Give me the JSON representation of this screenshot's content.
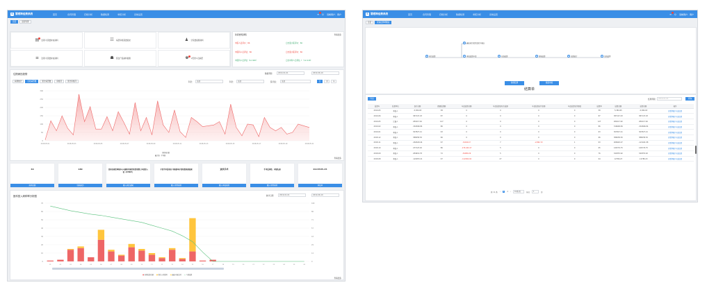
{
  "app": {
    "title": "慧眼神经费系统",
    "user": "当前用户：用户",
    "badge": "2"
  },
  "nav": [
    "首页",
    "合同管理",
    "归档分析",
    "数据检测",
    "考核分析",
    "系统设置"
  ],
  "left": {
    "tabs": [
      "首页",
      "运营管理"
    ],
    "quick": [
      "近期 可需要补充资料",
      "病历审核需要提交",
      "全院要提醒资料",
      "近期 可需要补充资料",
      "医患产品资料提醒",
      "2天里人员病历"
    ],
    "notice": {
      "title": "新闻告知通知",
      "more": "查看更多",
      "items": [
        [
          "中医人员评价：86",
          "日志量小医评价：86"
        ],
        [
          "中医科人员评估：86",
          "日志量小医评价：86"
        ],
        [
          "中医科人员评估（12.368）",
          "日志中科人员评估 ↑（12.218）"
        ]
      ]
    },
    "trend": {
      "title": "住院病历趋势",
      "date_label": "数据周期",
      "date_from": "2019-01-01",
      "date_to": "2019-06-19",
      "tabs": [
        "病例统计",
        "归档病历数",
        "累计病历数",
        "审核问",
        "累计审核问"
      ],
      "f1": "科室：",
      "f1v": "全部",
      "f2": "科室：",
      "f2v": "全部",
      "f3": "医疗组：",
      "f3v": "全部",
      "btns": [
        "日",
        "月",
        "年"
      ],
      "legend": [
        "全院病历数",
        "最大值",
        "平均值"
      ],
      "more": "查看更多"
    },
    "stats": [
      {
        "v": "40",
        "b": "病例总数"
      },
      {
        "v": "180",
        "b": "归档病历"
      },
      {
        "v": "目前在病历审核中心(通知)的病历的患者第三申请是入者（STENT）",
        "b": "重入病历通知"
      },
      {
        "v": "子宫手术后病况 可能影响子宫和患病部结果",
        "b": "重入可用病例"
      },
      {
        "v": "波状手术",
        "b": "重入审核病例"
      },
      {
        "v": "手术后风险、冲管失调",
        "b": "重入可用病例"
      },
      {
        "v": "0115535.25",
        "b": "审核中"
      }
    ],
    "chart2": {
      "title": "医科室入病种率分析图",
      "label": "统计日期",
      "from": "2019-01-01",
      "to": "2019-06-19",
      "legend": [
        "病例结算总额",
        "整合入院费用",
        "最高可报比例",
        "人数结算"
      ],
      "more": "查看更多"
    }
  },
  "right": {
    "tabs": [
      "首页",
      "医保结算明细表"
    ],
    "flow": [
      "病历结算",
      "审核病历类型及签字确认",
      "审批结算申请",
      "在线结算",
      "智能结算",
      "审核结算",
      "总数统计",
      "归档结算"
    ],
    "btn1": "新增结算",
    "btn2": "批量审核",
    "heading": "结算单",
    "export": "导出",
    "period_label": "结算周期：",
    "period": "2019-01-01",
    "query": "查询",
    "cols": [
      "结算年",
      "结算单位",
      "医疗总额",
      "数量结算额",
      "年度结算金额",
      "年度结算实际完成额",
      "年度结算应付金额",
      "年度结算实付额度",
      "结算率",
      "结算金额",
      "结算金额",
      "操作"
    ],
    "rows": [
      [
        "2019-05",
        "本医人",
        "-5,384.65",
        "58",
        "0",
        "0",
        "0",
        "0",
        "58",
        "5,384.65",
        "-5,384.65"
      ],
      [
        "2019-06",
        "本医人",
        "387147.03",
        "87",
        "0",
        "0",
        "0",
        "0",
        "87",
        "387147.03",
        "387147.03"
      ],
      [
        "2019-05",
        "汇集人",
        "281617.62",
        "127",
        "0",
        "0",
        "0",
        "0",
        "127",
        "281617.62",
        "281617.62"
      ],
      [
        "2019-02",
        "本医人",
        "-316696.84",
        "86",
        "0",
        "0",
        "0",
        "0",
        "86",
        "316696.84",
        "-316696.84"
      ],
      [
        "2019-01",
        "本医人",
        "307827.21",
        "63",
        "0",
        "0",
        "0",
        "0",
        "63",
        "307827.21",
        "307827.21"
      ],
      [
        "2018-12",
        "本医人",
        "386058.30",
        "66",
        "0",
        "0",
        "0",
        "0",
        "66",
        "386058.30",
        "386058.30"
      ],
      [
        "2018-11",
        "本医人",
        "-262649.44",
        "67",
        "-8,694.47",
        "7",
        "-2,862.72",
        "1",
        "93",
        "266920.47",
        "-121441.98"
      ],
      [
        "2018-10",
        "本医人",
        "237123.92",
        "86",
        "-179,444.17",
        "5",
        "0",
        "0",
        "95",
        "146776.75",
        "146776.75"
      ],
      [
        "2018-09",
        "本医人",
        "284619.78",
        "72",
        "-54080.29",
        "5",
        "0",
        "0",
        "76",
        "340353.92",
        "340353.92"
      ],
      [
        "2018-08",
        "本医人",
        "-124953.21",
        "97",
        "-112092.04",
        "27",
        "0",
        "0",
        "94",
        "12786.23",
        "-12786.23"
      ]
    ],
    "op": [
      "查看明细",
      "导出结算"
    ],
    "pager": {
      "total": "共 11 条",
      "pages": [
        "1",
        "2"
      ],
      "goto": "前往",
      "page": "1",
      "unit": "页",
      "size": "10条/页"
    }
  },
  "chart_data": [
    {
      "type": "area",
      "title": "",
      "series": [
        {
          "name": "全院病历数",
          "values": [
            5,
            120,
            60,
            150,
            75,
            35,
            280,
            115,
            205,
            70,
            70,
            145,
            60,
            175,
            110,
            40,
            230,
            60,
            140,
            35,
            240,
            95,
            50,
            185,
            55,
            20,
            140,
            115,
            85,
            90,
            95,
            115,
            40,
            220,
            80,
            30,
            100,
            95,
            25,
            140,
            80,
            60,
            80,
            40,
            50,
            100,
            90,
            80
          ]
        }
      ],
      "ylim": [
        0,
        300
      ],
      "x_ticks": [
        "2018-05-01",
        "2018-05-02",
        "2018-05-03",
        "2018-05-04",
        "2018-05-05",
        "2018-05-06",
        "2018-05-07",
        "2018-05-08",
        "2018-05-09",
        "2018-05-10",
        "2018-05-11",
        "2018-05-12",
        "2018-05-13",
        "2018-05-14",
        "2018-05-15",
        "2018-05-16",
        "2018-05-17",
        "2018-05-18",
        "2018-05-19",
        "2018-05-20",
        "2018-05-21"
      ],
      "y_ticks": [
        "300",
        "250",
        "200",
        "150",
        "100",
        "50",
        "0"
      ]
    },
    {
      "type": "bar",
      "title": "",
      "categories": [
        "01",
        "02",
        "03",
        "04",
        "05",
        "06",
        "07",
        "08",
        "09",
        "10",
        "11",
        "12",
        "13",
        "14",
        "15",
        "16",
        "17",
        "18",
        "19",
        "20",
        "21",
        "22",
        "23",
        "24",
        "25",
        "26"
      ],
      "series": [
        {
          "name": "病例结算总额",
          "values": [
            1,
            2,
            14,
            16,
            5,
            26,
            12,
            7,
            17,
            13,
            8,
            4,
            14,
            3,
            12,
            1,
            2,
            0,
            0,
            0,
            0,
            0,
            0,
            0,
            0,
            0
          ]
        },
        {
          "name": "整合入院费用",
          "values": [
            0,
            0,
            1,
            2,
            0,
            12,
            2,
            1,
            4,
            2,
            2,
            1,
            2,
            1,
            40,
            0,
            0,
            0,
            0,
            0,
            0,
            0,
            0,
            0,
            0,
            0
          ]
        },
        {
          "name": "人数结算",
          "values": [
            95,
            91,
            87,
            84,
            81,
            79,
            76,
            73,
            70,
            67,
            62,
            57,
            52,
            44,
            34,
            16,
            0,
            0,
            0,
            0,
            0,
            0,
            0,
            0,
            0,
            0
          ]
        }
      ],
      "y1lim": [
        0,
        70
      ],
      "y2lim": [
        0,
        100
      ]
    }
  ]
}
